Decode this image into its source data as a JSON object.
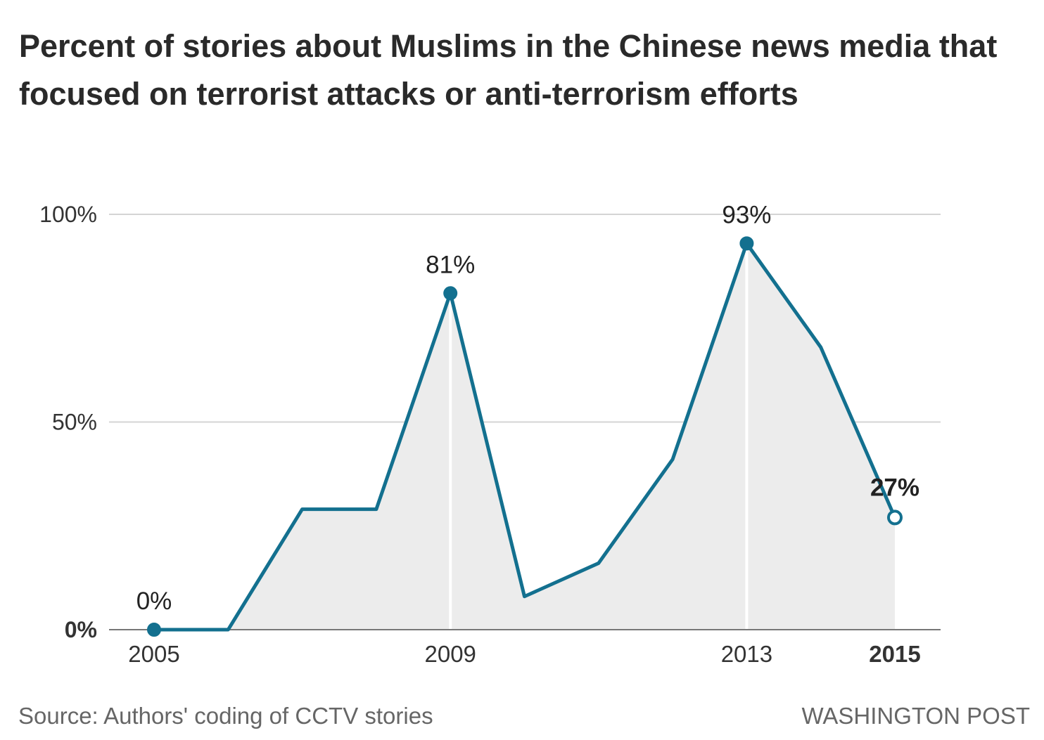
{
  "chart_data": {
    "type": "area",
    "title": "Percent of stories about Muslims in the Chinese news media that focused on terrorist attacks or anti-terrorism efforts",
    "xlabel": "",
    "ylabel": "",
    "ylim": [
      0,
      100
    ],
    "xlim": [
      2005,
      2015
    ],
    "grid": true,
    "y_ticks": [
      {
        "value": 0,
        "label": "0%"
      },
      {
        "value": 50,
        "label": "50%"
      },
      {
        "value": 100,
        "label": "100%"
      }
    ],
    "x_ticks": [
      {
        "value": 2005,
        "label": "2005"
      },
      {
        "value": 2009,
        "label": "2009"
      },
      {
        "value": 2013,
        "label": "2013"
      },
      {
        "value": 2015,
        "label": "2015"
      }
    ],
    "series": [
      {
        "name": "Percent of stories",
        "color": "#13708f",
        "x": [
          2005,
          2006,
          2007,
          2008,
          2009,
          2010,
          2011,
          2012,
          2013,
          2014,
          2015
        ],
        "values": [
          0,
          0,
          29,
          29,
          81,
          8,
          16,
          41,
          93,
          68,
          27
        ]
      }
    ],
    "annotations": [
      {
        "x": 2005,
        "value": 0,
        "label": "0%"
      },
      {
        "x": 2009,
        "value": 81,
        "label": "81%"
      },
      {
        "x": 2013,
        "value": 93,
        "label": "93%"
      },
      {
        "x": 2015,
        "value": 27,
        "label": "27%"
      }
    ],
    "source": "Source: Authors' coding of CCTV stories",
    "credit": "WASHINGTON POST"
  }
}
